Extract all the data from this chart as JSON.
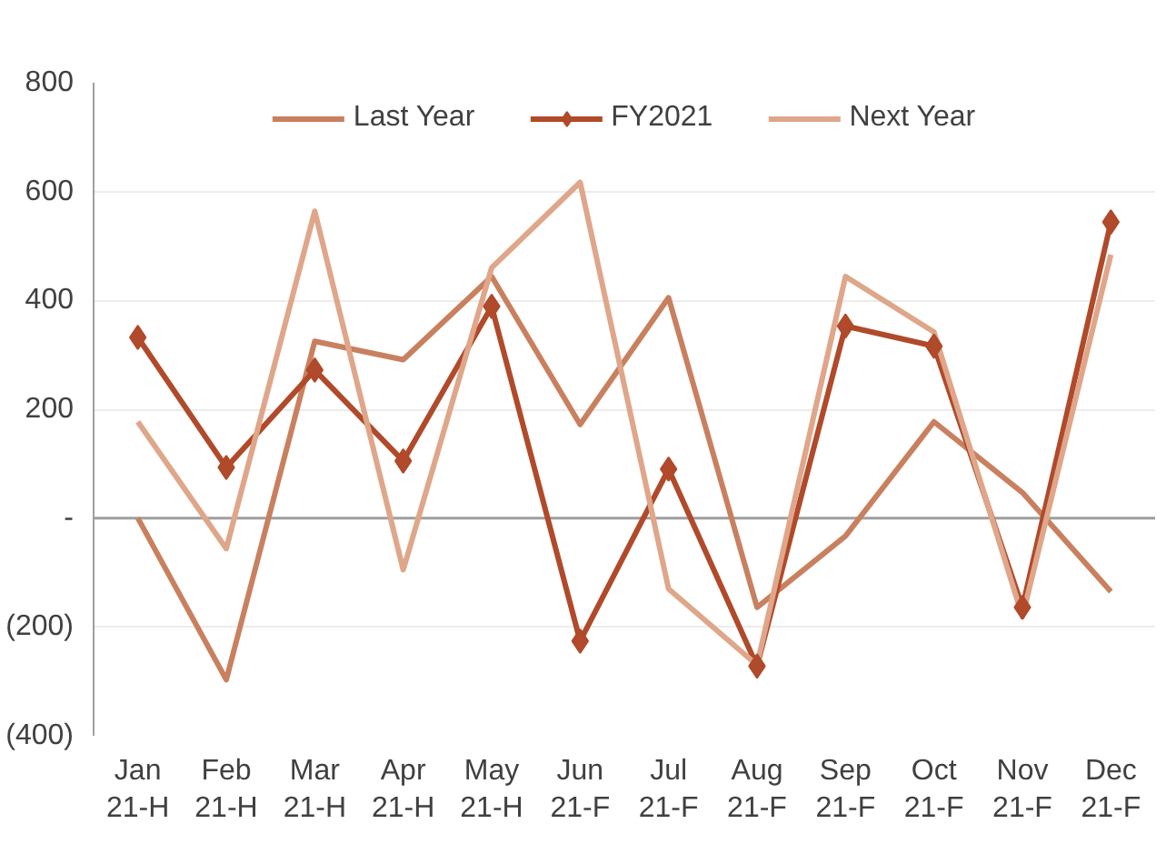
{
  "chart_data": {
    "type": "line",
    "categories": [
      "Jan\n21-H",
      "Feb\n21-H",
      "Mar\n21-H",
      "Apr\n21-H",
      "May\n21-H",
      "Jun\n21-F",
      "Jul\n21-F",
      "Aug\n21-F",
      "Sep\n21-F",
      "Oct\n21-F",
      "Nov\n21-F",
      "Dec\n21-F"
    ],
    "series": [
      {
        "name": "Last Year",
        "color": "#c9805f",
        "marker": "none",
        "values": [
          0,
          -297,
          325,
          291,
          444,
          172,
          405,
          -164,
          -33,
          177,
          47,
          -135
        ]
      },
      {
        "name": "FY2021",
        "color": "#b04a2a",
        "marker": "diamond",
        "values": [
          332,
          93,
          272,
          105,
          389,
          -226,
          90,
          -272,
          353,
          316,
          -164,
          544
        ]
      },
      {
        "name": "Next Year",
        "color": "#dfa68a",
        "marker": "none",
        "values": [
          177,
          -56,
          564,
          -95,
          460,
          617,
          -130,
          -270,
          444,
          342,
          -181,
          484
        ]
      }
    ],
    "ylim": [
      -400,
      800
    ],
    "yticks": [
      {
        "value": -400,
        "label": "(400)"
      },
      {
        "value": -200,
        "label": "(200)"
      },
      {
        "value": 0,
        "label": "-"
      },
      200,
      400,
      600,
      800
    ],
    "grid": "y",
    "legend": "top"
  }
}
